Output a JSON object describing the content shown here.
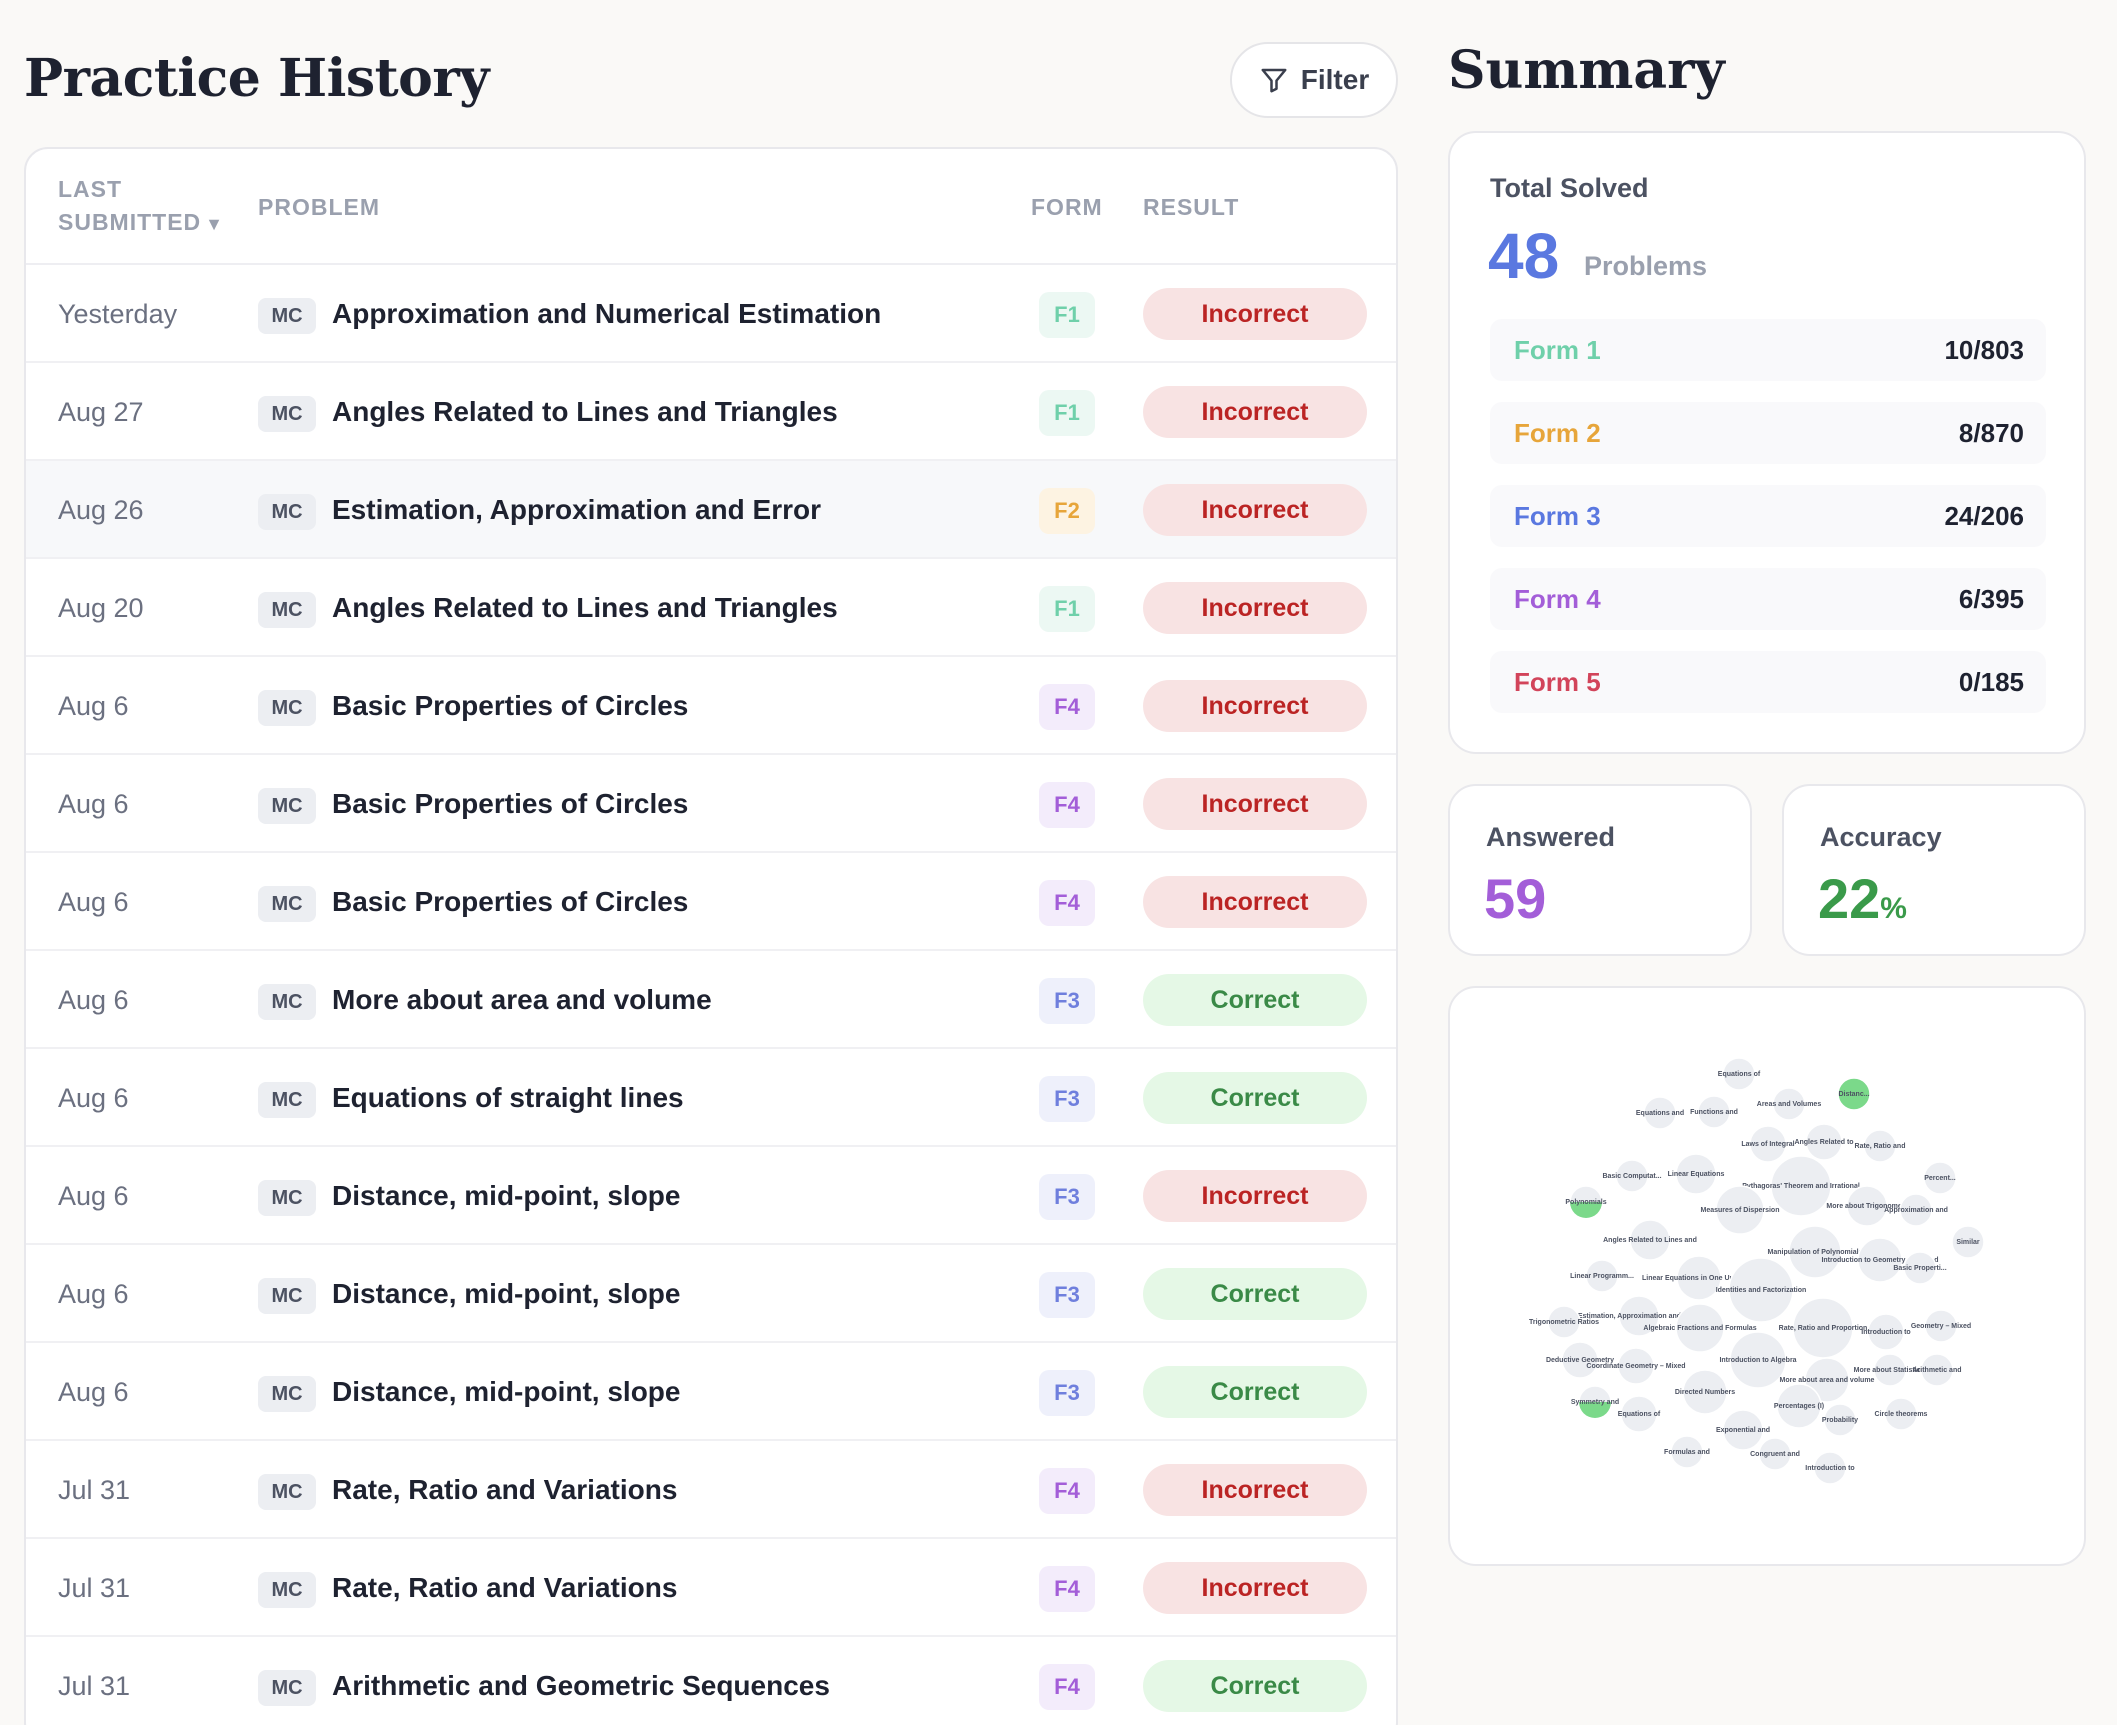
{
  "history": {
    "title": "Practice History",
    "filter_label": "Filter",
    "columns": {
      "last_submitted": "LAST SUBMITTED",
      "problem": "PROBLEM",
      "form": "FORM",
      "result": "RESULT"
    },
    "sort_indicator": "▼",
    "rows": [
      {
        "date": "Yesterday",
        "type": "MC",
        "problem": "Approximation and Numerical Estimation",
        "form": "F1",
        "result": "Incorrect"
      },
      {
        "date": "Aug 27",
        "type": "MC",
        "problem": "Angles Related to Lines and Triangles",
        "form": "F1",
        "result": "Incorrect"
      },
      {
        "date": "Aug 26",
        "type": "MC",
        "problem": "Estimation, Approximation and Error",
        "form": "F2",
        "result": "Incorrect"
      },
      {
        "date": "Aug 20",
        "type": "MC",
        "problem": "Angles Related to Lines and Triangles",
        "form": "F1",
        "result": "Incorrect"
      },
      {
        "date": "Aug 6",
        "type": "MC",
        "problem": "Basic Properties of Circles",
        "form": "F4",
        "result": "Incorrect"
      },
      {
        "date": "Aug 6",
        "type": "MC",
        "problem": "Basic Properties of Circles",
        "form": "F4",
        "result": "Incorrect"
      },
      {
        "date": "Aug 6",
        "type": "MC",
        "problem": "Basic Properties of Circles",
        "form": "F4",
        "result": "Incorrect"
      },
      {
        "date": "Aug 6",
        "type": "MC",
        "problem": "More about area and volume",
        "form": "F3",
        "result": "Correct"
      },
      {
        "date": "Aug 6",
        "type": "MC",
        "problem": "Equations of straight lines",
        "form": "F3",
        "result": "Correct"
      },
      {
        "date": "Aug 6",
        "type": "MC",
        "problem": "Distance, mid-point, slope",
        "form": "F3",
        "result": "Incorrect"
      },
      {
        "date": "Aug 6",
        "type": "MC",
        "problem": "Distance, mid-point, slope",
        "form": "F3",
        "result": "Correct"
      },
      {
        "date": "Aug 6",
        "type": "MC",
        "problem": "Distance, mid-point, slope",
        "form": "F3",
        "result": "Correct"
      },
      {
        "date": "Jul 31",
        "type": "MC",
        "problem": "Rate, Ratio and Variations",
        "form": "F4",
        "result": "Incorrect"
      },
      {
        "date": "Jul 31",
        "type": "MC",
        "problem": "Rate, Ratio and Variations",
        "form": "F4",
        "result": "Incorrect"
      },
      {
        "date": "Jul 31",
        "type": "MC",
        "problem": "Arithmetic and Geometric Sequences",
        "form": "F4",
        "result": "Correct"
      }
    ]
  },
  "summary": {
    "title": "Summary",
    "total_label": "Total Solved",
    "total_value": "48",
    "total_unit": "Problems",
    "forms": [
      {
        "name": "Form 1",
        "value": "10/803",
        "color": "#6fd0aa"
      },
      {
        "name": "Form 2",
        "value": "8/870",
        "color": "#e7a53a"
      },
      {
        "name": "Form 3",
        "value": "24/206",
        "color": "#5a78e0"
      },
      {
        "name": "Form 4",
        "value": "6/395",
        "color": "#a35ed8"
      },
      {
        "name": "Form 5",
        "value": "0/185",
        "color": "#d2445a"
      }
    ],
    "answered_label": "Answered",
    "answered_value": "59",
    "answered_color": "#a35ed8",
    "accuracy_label": "Accuracy",
    "accuracy_value": "22",
    "accuracy_unit": "%",
    "accuracy_color": "#3a9a4a"
  },
  "topic_bubbles": [
    {
      "label": "Equations of",
      "status": "none"
    },
    {
      "label": "Areas and Volumes",
      "status": "none"
    },
    {
      "label": "Distanc...",
      "status": "correct"
    },
    {
      "label": "Equations and",
      "status": "none"
    },
    {
      "label": "Functions and",
      "status": "none"
    },
    {
      "label": "Laws of Integral",
      "status": "none"
    },
    {
      "label": "Angles Related to",
      "status": "none"
    },
    {
      "label": "Rate, Ratio and",
      "status": "none"
    },
    {
      "label": "Basic Computat...",
      "status": "none"
    },
    {
      "label": "Linear Equations",
      "status": "none"
    },
    {
      "label": "Pythagoras' Theorem and Irrational",
      "status": "none"
    },
    {
      "label": "Percent...",
      "status": "none"
    },
    {
      "label": "Polynomials",
      "status": "partial"
    },
    {
      "label": "Measures of Dispersion",
      "status": "none"
    },
    {
      "label": "More about Trigonome...",
      "status": "none"
    },
    {
      "label": "Approximation and",
      "status": "none"
    },
    {
      "label": "Angles Related to Lines and",
      "status": "none"
    },
    {
      "label": "Similar",
      "status": "none"
    },
    {
      "label": "Manipulation of Polynomials",
      "status": "none"
    },
    {
      "label": "Introduction to Geometry, Area and",
      "status": "none"
    },
    {
      "label": "Linear Equations in One Unknown",
      "status": "none"
    },
    {
      "label": "Basic Properti...",
      "status": "none"
    },
    {
      "label": "Linear Programm...",
      "status": "none"
    },
    {
      "label": "Identities and Factorization",
      "status": "none"
    },
    {
      "label": "Estimation, Approximation and Error",
      "status": "none"
    },
    {
      "label": "Trigonometric Ratios",
      "status": "none"
    },
    {
      "label": "Algebraic Fractions and Formulas",
      "status": "none"
    },
    {
      "label": "Rate, Ratio and Proportion",
      "status": "none"
    },
    {
      "label": "Introduction to",
      "status": "none"
    },
    {
      "label": "Geometry – Mixed",
      "status": "none"
    },
    {
      "label": "Deductive Geometry",
      "status": "none"
    },
    {
      "label": "Coordinate Geometry – Mixed",
      "status": "none"
    },
    {
      "label": "Introduction to Algebra",
      "status": "none"
    },
    {
      "label": "More about Statistic...",
      "status": "none"
    },
    {
      "label": "Arithmetic and",
      "status": "none"
    },
    {
      "label": "More about area and volume",
      "status": "none"
    },
    {
      "label": "Directed Numbers",
      "status": "none"
    },
    {
      "label": "Symmetry and",
      "status": "partial"
    },
    {
      "label": "Percentages (I)",
      "status": "none"
    },
    {
      "label": "Equations of",
      "status": "none"
    },
    {
      "label": "Circle theorems",
      "status": "none"
    },
    {
      "label": "Probability",
      "status": "none"
    },
    {
      "label": "Exponential and",
      "status": "none"
    },
    {
      "label": "Formulas and",
      "status": "none"
    },
    {
      "label": "Congruent and",
      "status": "none"
    },
    {
      "label": "Introduction to",
      "status": "none"
    }
  ]
}
